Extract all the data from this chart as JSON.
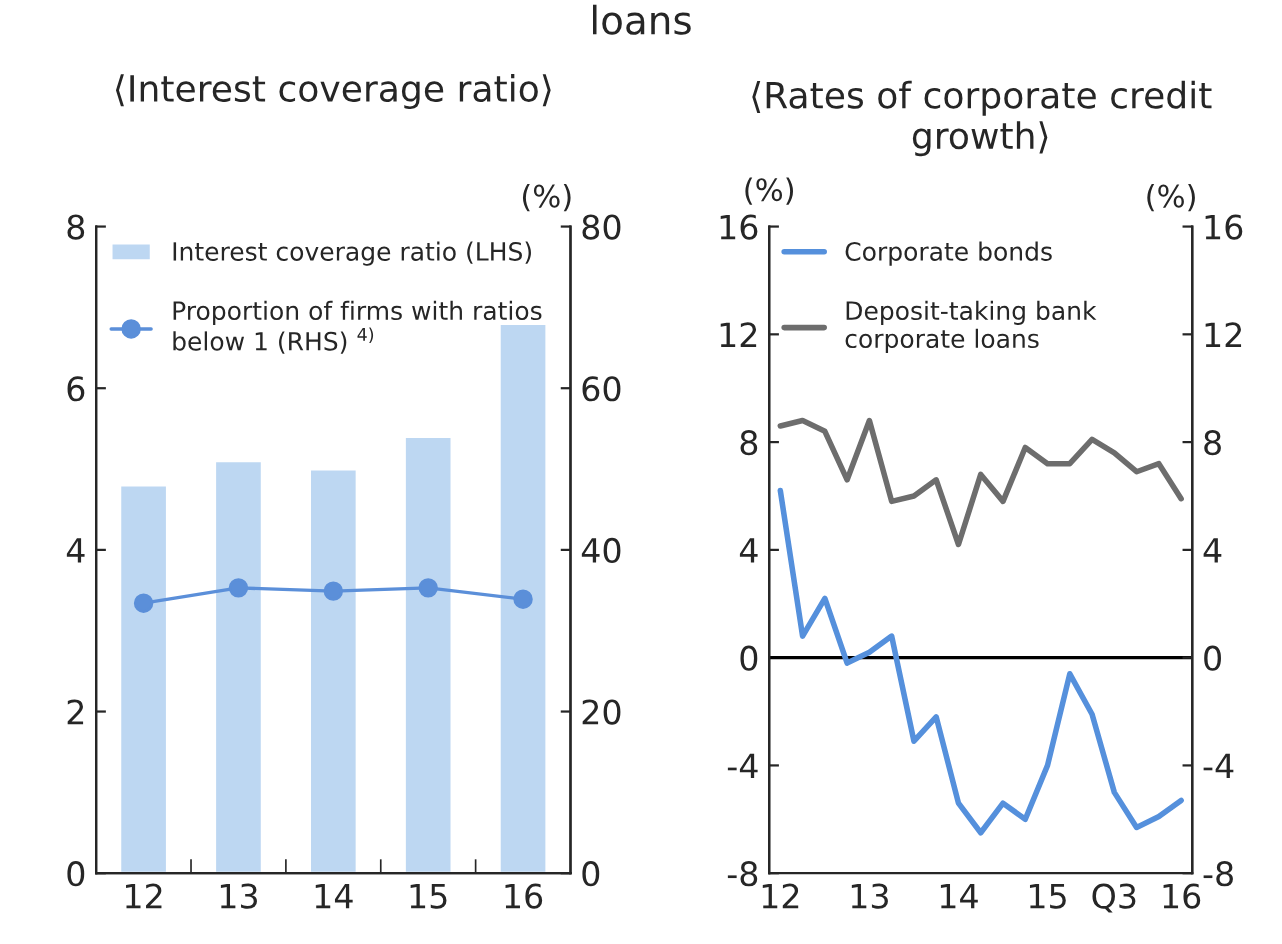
{
  "chart_data": [
    {
      "type": "bar",
      "title": "⟨Interest coverage ratio⟩",
      "annotations": [
        "loans"
      ],
      "y2label": "(%)",
      "categories": [
        "12",
        "13",
        "14",
        "15",
        "16"
      ],
      "series": [
        {
          "name": "Interest coverage ratio (LHS)",
          "color": "#bdd7f2",
          "values": [
            4.8,
            5.1,
            5.0,
            5.4,
            6.8
          ]
        },
        {
          "name": "Proportion of firms with ratios\nbelow 1 (RHS) $^{4)}$",
          "type": "line",
          "axis": "y2",
          "color": "#5b8fd9",
          "values": [
            33.4,
            35.3,
            34.9,
            35.3,
            33.9
          ]
        }
      ],
      "ylim": [
        0,
        8
      ],
      "yticks": [
        0,
        2,
        4,
        6,
        8
      ],
      "y2lim": [
        0,
        80
      ],
      "y2ticks": [
        0,
        20,
        40,
        60,
        80
      ],
      "marker": "circle",
      "legend": "top left",
      "grid": false
    },
    {
      "type": "line",
      "title": "⟨Rates of corporate credit growth⟩",
      "ylabel": "(%)",
      "y2label": "(%)",
      "categories": [
        "12",
        null,
        null,
        null,
        "13",
        null,
        null,
        null,
        "14",
        null,
        null,
        null,
        "15",
        null,
        null,
        "Q3",
        null,
        null,
        "16"
      ],
      "series": [
        {
          "name": "Corporate bonds",
          "color": "#5590dc",
          "values": [
            6.2,
            0.8,
            2.2,
            -0.2,
            0.2,
            0.8,
            -3.1,
            -2.2,
            -5.4,
            -6.5,
            -5.4,
            -6.0,
            -4.0,
            -0.6,
            -2.1,
            -5.0,
            -6.3,
            -5.9,
            -5.3
          ]
        },
        {
          "name": "Deposit-taking bank\ncorporate loans",
          "color": "#6d6d6d",
          "values": [
            8.6,
            8.8,
            8.4,
            6.6,
            8.8,
            5.8,
            6.0,
            6.6,
            4.2,
            6.8,
            5.8,
            7.8,
            7.2,
            7.2,
            8.1,
            7.6,
            6.9,
            7.2,
            5.9
          ]
        }
      ],
      "ylim": [
        -8,
        16
      ],
      "yticks": [
        -8,
        -4,
        0,
        4,
        8,
        12,
        16
      ],
      "y2lim": [
        -8,
        16
      ],
      "y2ticks": [
        -8,
        -4,
        0,
        4,
        8,
        12,
        16
      ],
      "ref_lines": [
        {
          "axis": "y",
          "value": 0,
          "color": "#000000"
        }
      ],
      "marker": "none",
      "line_style": "solid",
      "legend": "top left",
      "grid": false
    }
  ]
}
